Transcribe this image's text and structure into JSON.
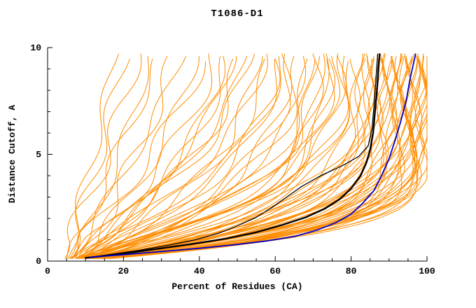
{
  "chart_data": {
    "type": "line",
    "title": "T1086-D1",
    "xlabel": "Percent of Residues (CA)",
    "ylabel": "Distance Cutoff, A",
    "xlim": [
      0,
      100
    ],
    "ylim": [
      0,
      10
    ],
    "xticks": [
      0,
      20,
      40,
      60,
      80,
      100
    ],
    "yticks": [
      0,
      5,
      10
    ],
    "grid": false,
    "legend": "none",
    "ensemble": {
      "name": "prediction-curves",
      "color": "#ff8c00",
      "curve_params_format": [
        "x_start_pct",
        "x_end_pct",
        "shape_exponent",
        "wiggle_amp",
        "wiggle_phase"
      ],
      "curves": [
        [
          5,
          18,
          1.1,
          2,
          0.5
        ],
        [
          6,
          21,
          1.0,
          2.5,
          1.2
        ],
        [
          4,
          24,
          1.2,
          3,
          2.1
        ],
        [
          7,
          27,
          1.3,
          2,
          3.0
        ],
        [
          5,
          30,
          1.1,
          2.5,
          4.2
        ],
        [
          8,
          33,
          1.4,
          3,
          5.1
        ],
        [
          6,
          36,
          1.2,
          2,
          0.9
        ],
        [
          9,
          39,
          1.5,
          2.5,
          1.8
        ],
        [
          5,
          42,
          1.3,
          3,
          2.7
        ],
        [
          6,
          44,
          1.6,
          3,
          3.6
        ],
        [
          8,
          47,
          1.8,
          2.5,
          4.5
        ],
        [
          5,
          50,
          2.0,
          3,
          5.4
        ],
        [
          7,
          52,
          1.7,
          2,
          0.3
        ],
        [
          9,
          55,
          2.2,
          3,
          1.1
        ],
        [
          6,
          57,
          1.9,
          2.5,
          2.0
        ],
        [
          8,
          60,
          2.4,
          3,
          2.9
        ],
        [
          5,
          62,
          2.1,
          2,
          3.8
        ],
        [
          7,
          64,
          2.6,
          3,
          4.7
        ],
        [
          10,
          58,
          2.0,
          2.5,
          5.6
        ],
        [
          6,
          53,
          1.8,
          3,
          0.7
        ],
        [
          8,
          49,
          1.6,
          2,
          1.6
        ],
        [
          5,
          46,
          1.9,
          2.5,
          2.5
        ],
        [
          9,
          63,
          2.8,
          3,
          3.4
        ],
        [
          7,
          61,
          2.3,
          2,
          4.3
        ],
        [
          6,
          66,
          2.8,
          3,
          5.2
        ],
        [
          8,
          68,
          3.0,
          2.5,
          0.1
        ],
        [
          5,
          70,
          3.2,
          3,
          1.0
        ],
        [
          7,
          72,
          2.9,
          2,
          1.9
        ],
        [
          9,
          74,
          3.4,
          3,
          2.8
        ],
        [
          6,
          76,
          3.1,
          2.5,
          3.7
        ],
        [
          8,
          78,
          3.6,
          3,
          4.6
        ],
        [
          5,
          80,
          3.3,
          2,
          5.5
        ],
        [
          7,
          82,
          3.8,
          3,
          0.6
        ],
        [
          10,
          84,
          4.0,
          2.5,
          1.5
        ],
        [
          6,
          67,
          2.7,
          2,
          2.4
        ],
        [
          8,
          71,
          3.5,
          3,
          3.3
        ],
        [
          5,
          75,
          3.0,
          2.5,
          4.2
        ],
        [
          9,
          79,
          3.9,
          2,
          5.1
        ],
        [
          7,
          83,
          4.2,
          3,
          0.2
        ],
        [
          6,
          69,
          3.2,
          2.5,
          1.3
        ],
        [
          8,
          73,
          3.7,
          2,
          2.2
        ],
        [
          5,
          77,
          3.4,
          3,
          3.1
        ],
        [
          7,
          81,
          4.1,
          2.5,
          4.0
        ],
        [
          9,
          84,
          4.4,
          2,
          4.9
        ],
        [
          6,
          85,
          4.5,
          2.5,
          0.4
        ],
        [
          8,
          86,
          5.0,
          2,
          1.3
        ],
        [
          5,
          87,
          4.2,
          3,
          2.2
        ],
        [
          7,
          88,
          5.5,
          2.5,
          3.1
        ],
        [
          9,
          89,
          4.8,
          2,
          4.0
        ],
        [
          6,
          90,
          6.0,
          3,
          4.9
        ],
        [
          8,
          91,
          5.2,
          2.5,
          5.8
        ],
        [
          5,
          92,
          6.5,
          2,
          0.8
        ],
        [
          7,
          93,
          5.6,
          3,
          1.7
        ],
        [
          9,
          94,
          7.0,
          2.5,
          2.6
        ],
        [
          6,
          95,
          6.2,
          2,
          3.5
        ],
        [
          8,
          96,
          7.5,
          3,
          4.4
        ],
        [
          5,
          97,
          6.8,
          2.5,
          5.3
        ],
        [
          7,
          98,
          8.0,
          2,
          0.9
        ],
        [
          9,
          99,
          7.2,
          3,
          1.8
        ],
        [
          6,
          100,
          7.8,
          2.5,
          2.7
        ],
        [
          8,
          85,
          4.0,
          2,
          3.6
        ],
        [
          5,
          86,
          4.6,
          3,
          4.5
        ],
        [
          7,
          87,
          5.1,
          2.5,
          5.4
        ],
        [
          9,
          88,
          4.4,
          2,
          0.5
        ],
        [
          6,
          89,
          5.8,
          3,
          1.4
        ],
        [
          8,
          90,
          5.3,
          2.5,
          2.3
        ],
        [
          5,
          91,
          6.4,
          2,
          3.2
        ],
        [
          7,
          92,
          5.9,
          3,
          4.1
        ],
        [
          9,
          93,
          6.6,
          2.5,
          5.0
        ],
        [
          6,
          94,
          7.4,
          2,
          5.9
        ],
        [
          8,
          95,
          6.1,
          3,
          0.6
        ],
        [
          5,
          96,
          7.7,
          2.5,
          1.5
        ],
        [
          7,
          97,
          6.9,
          2,
          2.4
        ],
        [
          9,
          98,
          7.3,
          3,
          3.3
        ],
        [
          6,
          99,
          8.2,
          2.5,
          4.2
        ],
        [
          8,
          100,
          7.6,
          2,
          5.1
        ],
        [
          5,
          95,
          5.5,
          3,
          0.3
        ],
        [
          7,
          96,
          6.3,
          2.5,
          1.2
        ],
        [
          9,
          97,
          7.1,
          2,
          2.1
        ],
        [
          6,
          98,
          7.9,
          3,
          3.0
        ],
        [
          8,
          99,
          6.7,
          2.5,
          3.9
        ],
        [
          5,
          100,
          8.4,
          2,
          4.8
        ],
        [
          7,
          94,
          5.4,
          3,
          5.7
        ],
        [
          9,
          92,
          4.9,
          2.5,
          0.7
        ]
      ]
    },
    "series": [
      {
        "name": "highlight-model-thin-black",
        "color": "#000000",
        "width": 1.3,
        "points": [
          [
            10,
            0.15
          ],
          [
            16,
            0.3
          ],
          [
            24,
            0.5
          ],
          [
            32,
            0.75
          ],
          [
            39,
            1.0
          ],
          [
            45,
            1.3
          ],
          [
            50,
            1.65
          ],
          [
            55,
            2.05
          ],
          [
            59,
            2.5
          ],
          [
            63,
            3.0
          ],
          [
            67,
            3.5
          ],
          [
            72,
            4.0
          ],
          [
            78,
            4.5
          ],
          [
            82,
            4.9
          ],
          [
            84.5,
            5.4
          ],
          [
            85.5,
            6.2
          ],
          [
            86,
            7.2
          ],
          [
            86.5,
            8.4
          ],
          [
            87,
            9.7
          ]
        ]
      },
      {
        "name": "highlight-model-thick-black",
        "color": "#000000",
        "width": 2.4,
        "points": [
          [
            10,
            0.15
          ],
          [
            18,
            0.3
          ],
          [
            28,
            0.55
          ],
          [
            38,
            0.8
          ],
          [
            47,
            1.05
          ],
          [
            55,
            1.35
          ],
          [
            62,
            1.7
          ],
          [
            68,
            2.05
          ],
          [
            73,
            2.45
          ],
          [
            77,
            2.9
          ],
          [
            80,
            3.4
          ],
          [
            82.5,
            4.0
          ],
          [
            84,
            4.6
          ],
          [
            85,
            5.2
          ],
          [
            85.8,
            6.0
          ],
          [
            86.3,
            7.0
          ],
          [
            86.8,
            8.0
          ],
          [
            87.2,
            9.0
          ],
          [
            87.5,
            9.7
          ]
        ]
      },
      {
        "name": "highlight-model-blue",
        "color": "#0000cc",
        "width": 1.8,
        "points": [
          [
            11,
            0.18
          ],
          [
            20,
            0.3
          ],
          [
            30,
            0.45
          ],
          [
            40,
            0.6
          ],
          [
            50,
            0.78
          ],
          [
            58,
            0.95
          ],
          [
            65,
            1.15
          ],
          [
            71,
            1.45
          ],
          [
            76,
            1.8
          ],
          [
            80,
            2.2
          ],
          [
            83,
            2.7
          ],
          [
            86,
            3.3
          ],
          [
            88,
            4.0
          ],
          [
            90,
            4.8
          ],
          [
            91.5,
            5.6
          ],
          [
            93,
            6.5
          ],
          [
            94.5,
            7.5
          ],
          [
            95.5,
            8.5
          ],
          [
            96.5,
            9.3
          ],
          [
            97,
            9.7
          ]
        ]
      }
    ]
  }
}
